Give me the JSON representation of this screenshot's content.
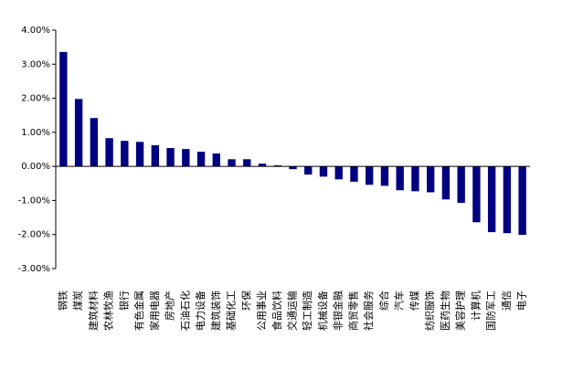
{
  "chart_data": {
    "type": "bar",
    "categories": [
      "钢铁",
      "煤炭",
      "建筑材料",
      "农林牧渔",
      "银行",
      "有色金属",
      "家用电器",
      "房地产",
      "石油石化",
      "电力设备",
      "建筑装饰",
      "基础化工",
      "环保",
      "公用事业",
      "食品饮料",
      "交通运输",
      "轻工制造",
      "机械设备",
      "非银金融",
      "商贸零售",
      "社会服务",
      "综合",
      "汽车",
      "传媒",
      "纺织服饰",
      "医药生物",
      "美容护理",
      "计算机",
      "国防军工",
      "通信",
      "电子"
    ],
    "values": [
      3.36,
      1.98,
      1.42,
      0.83,
      0.75,
      0.72,
      0.62,
      0.54,
      0.51,
      0.43,
      0.38,
      0.21,
      0.21,
      0.08,
      0.03,
      -0.08,
      -0.24,
      -0.3,
      -0.38,
      -0.45,
      -0.54,
      -0.57,
      -0.7,
      -0.73,
      -0.76,
      -0.97,
      -1.07,
      -1.64,
      -1.93,
      -1.96,
      -2.01
    ],
    "color": "#000080",
    "ylim": [
      -3,
      4
    ],
    "yticks": [
      {
        "value": -3,
        "label": "-3.00%"
      },
      {
        "value": -2,
        "label": "-2.00%"
      },
      {
        "value": -1,
        "label": "-1.00%"
      },
      {
        "value": 0,
        "label": "0.00%"
      },
      {
        "value": 1,
        "label": "1.00%"
      },
      {
        "value": 2,
        "label": "2.00%"
      },
      {
        "value": 3,
        "label": "3.00%"
      },
      {
        "value": 4,
        "label": "4.00%"
      }
    ],
    "grid": false
  }
}
